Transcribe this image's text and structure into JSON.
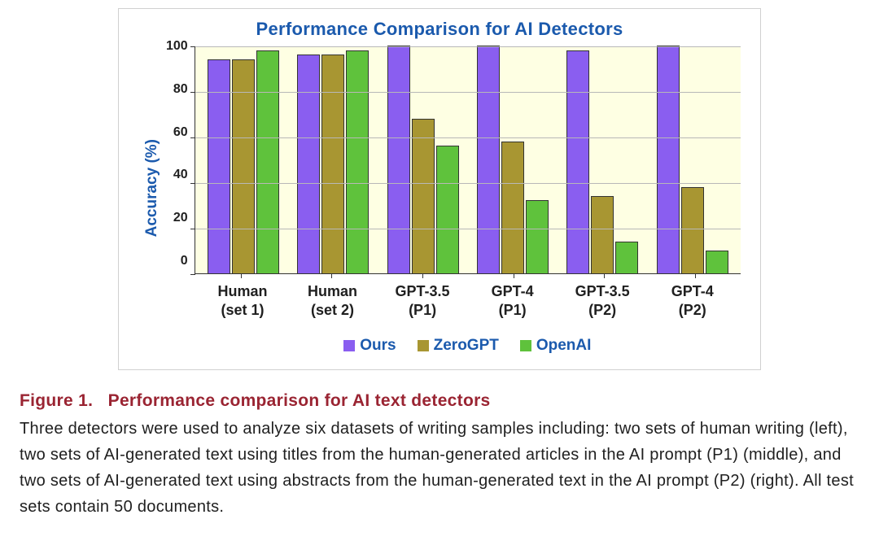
{
  "chart": {
    "type": "bar",
    "title": "Performance Comparison for AI Detectors",
    "y_axis": {
      "label": "Accuracy (%)",
      "min": 0,
      "max": 100,
      "ticks": [
        0,
        20,
        40,
        60,
        80,
        100
      ]
    },
    "categories": [
      "Human\n(set 1)",
      "Human\n(set 2)",
      "GPT-3.5\n(P1)",
      "GPT-4\n(P1)",
      "GPT-3.5\n(P2)",
      "GPT-4\n(P2)"
    ],
    "series": [
      {
        "name": "Ours",
        "color": "#8a5ef0",
        "values": [
          94,
          96,
          100,
          100,
          98,
          100
        ]
      },
      {
        "name": "ZeroGPT",
        "color": "#a89632",
        "values": [
          94,
          96,
          68,
          58,
          34,
          38
        ]
      },
      {
        "name": "OpenAI",
        "color": "#5fc23c",
        "values": [
          98,
          98,
          56,
          32,
          14,
          10
        ]
      }
    ],
    "style": {
      "background_color": "#ffffff",
      "plot_background": "#feffe3",
      "grid_color": "#b8b8b8",
      "axis_color": "#333333",
      "title_color": "#1b5aad",
      "axis_label_color": "#1b5aad",
      "tick_fontsize": 16,
      "title_fontsize": 22,
      "axis_label_fontsize": 19,
      "category_fontsize": 18,
      "legend_fontsize": 19,
      "legend_text_color": "#1b5aad",
      "bar_border_color": "#333333",
      "font_family": "Avenir, Helvetica, Arial, sans-serif"
    }
  },
  "caption": {
    "label": "Figure 1.",
    "title": "Performance comparison for AI text detectors",
    "body": "Three detectors were used to analyze six datasets of writing samples including: two sets of human writing (left), two sets of AI-generated text using titles from the human-generated articles in the AI prompt (P1) (middle), and two sets of AI-generated text using abstracts from the human-generated text in the AI prompt (P2) (right). All test sets contain 50 documents.",
    "label_color": "#9a2432",
    "body_color": "#202020"
  }
}
